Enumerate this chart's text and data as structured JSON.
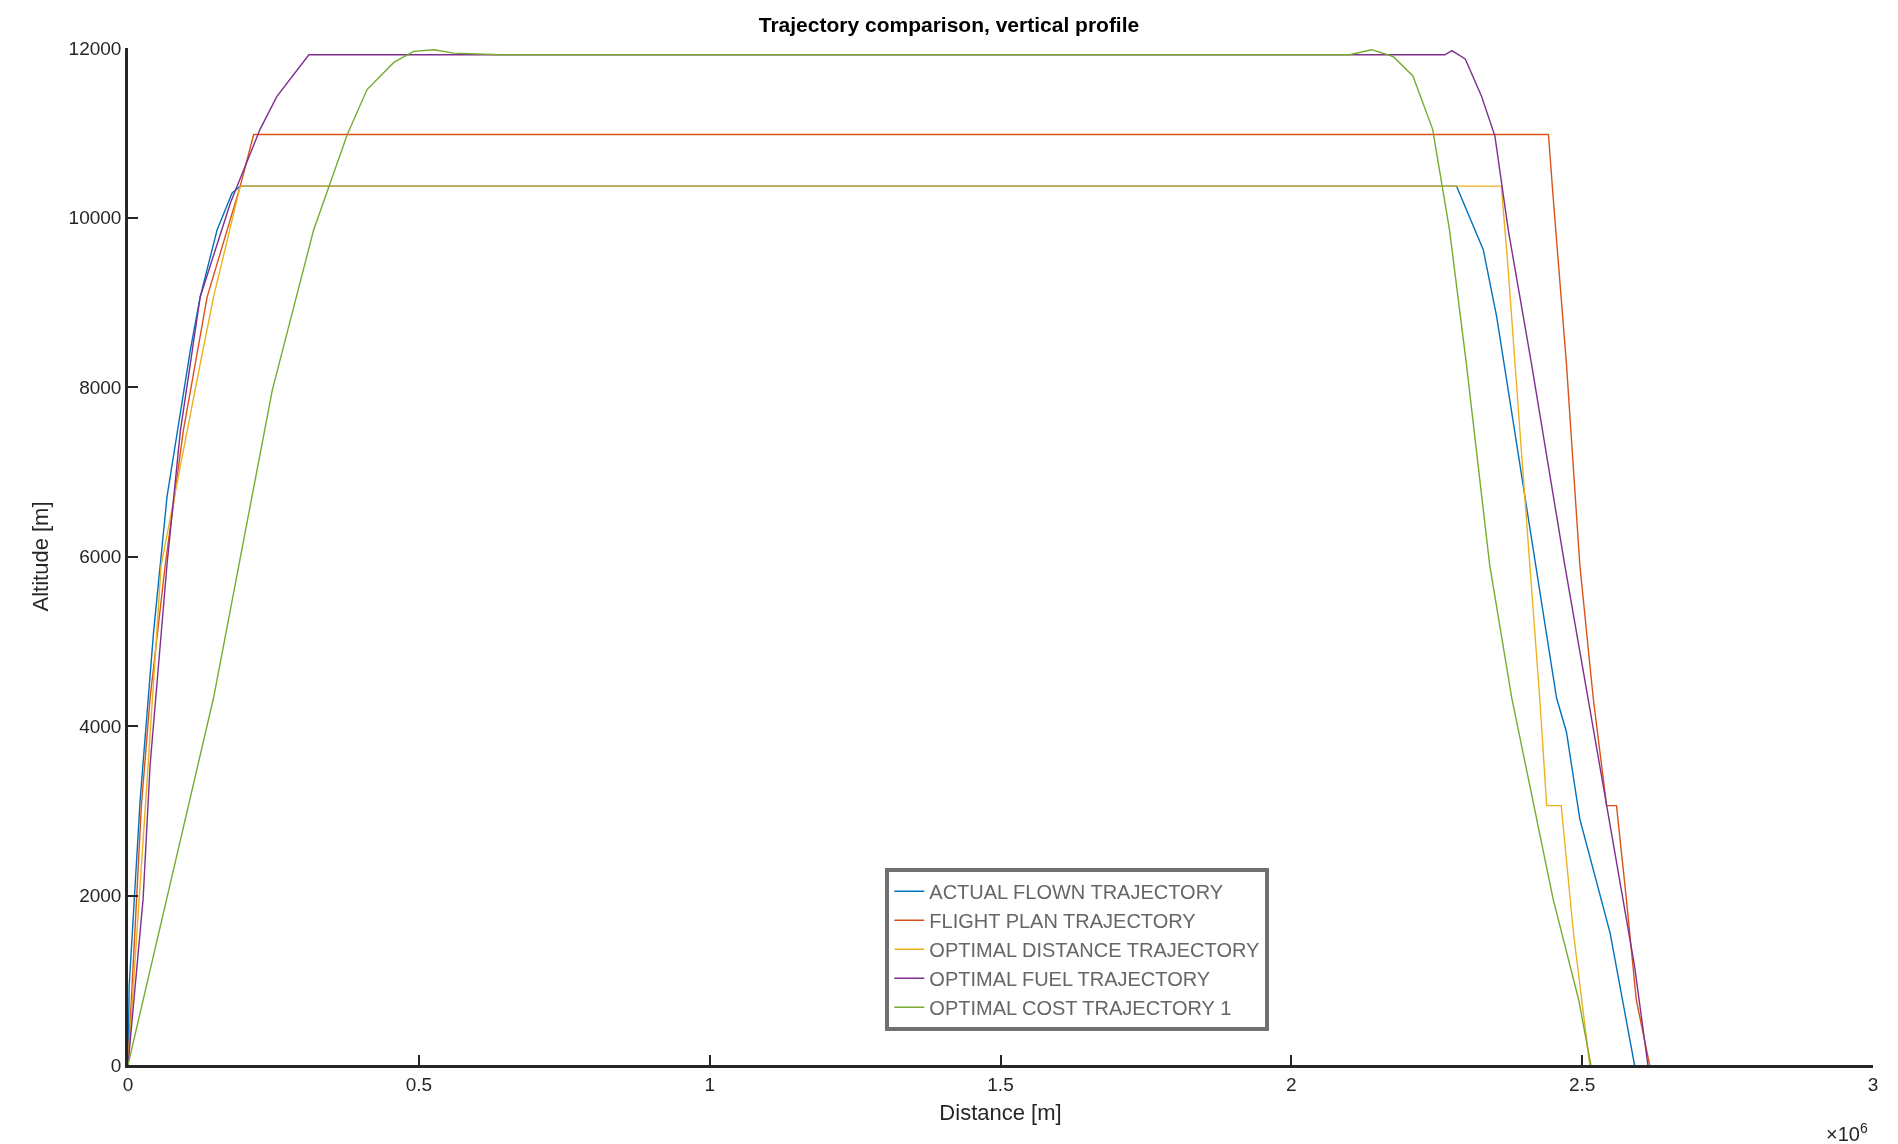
{
  "chart_data": {
    "type": "line",
    "title": "Trajectory comparison, vertical profile",
    "xlabel": "Distance [m]",
    "ylabel": "Altitude [m]",
    "annotations": [
      "×10$^{6}$"
    ],
    "xlim": [
      0,
      3
    ],
    "xticks": [
      0,
      0.5,
      1,
      1.5,
      2,
      2.5,
      3
    ],
    "ylim": [
      0,
      12000
    ],
    "yticks": [
      0,
      2000,
      4000,
      6000,
      8000,
      10000,
      12000
    ],
    "grid": false,
    "legend": "bottom",
    "marker": "none",
    "line_style": "solid",
    "series": [
      {
        "name": "ACTUAL FLOWN TRAJECTORY",
        "color": "#0072bd",
        "x": [
          0,
          0.002,
          0.021,
          0.044,
          0.067,
          0.107,
          0.124,
          0.153,
          0.179,
          0.193,
          2.284,
          2.33,
          2.353,
          2.391,
          2.456,
          2.473,
          2.496,
          2.548,
          2.59
        ],
        "values": [
          0,
          930,
          3140,
          5110,
          6700,
          8430,
          9060,
          9850,
          10290,
          10370,
          10370,
          9620,
          8830,
          7170,
          4330,
          3930,
          2900,
          1560,
          0
        ]
      },
      {
        "name": "FLIGHT PLAN TRAJECTORY",
        "color": "#d95319",
        "x": [
          0,
          0.023,
          0.038,
          0.064,
          0.095,
          0.136,
          0.193,
          0.216,
          2.442,
          2.45,
          2.473,
          2.496,
          2.519,
          2.542,
          2.559,
          2.576,
          2.593,
          2.616
        ],
        "values": [
          0,
          3060,
          4330,
          5900,
          7480,
          9060,
          10370,
          10980,
          10980,
          10250,
          8270,
          5900,
          4330,
          3060,
          3060,
          1960,
          770,
          0
        ]
      },
      {
        "name": "OPTIMAL DISTANCE TRAJECTORY",
        "color": "#edb120",
        "x": [
          0,
          0.03,
          0.057,
          0.124,
          0.147,
          0.193,
          2.361,
          2.372,
          2.393,
          2.41,
          2.427,
          2.439,
          2.464,
          2.485,
          2.513
        ],
        "values": [
          0,
          3060,
          5900,
          8270,
          9060,
          10370,
          10370,
          9460,
          7480,
          5900,
          4330,
          3060,
          3060,
          1560,
          0
        ]
      },
      {
        "name": "OPTIMAL FUEL TRAJECTORY",
        "color": "#7e2f8e",
        "x": [
          0,
          0.026,
          0.038,
          0.067,
          0.09,
          0.124,
          0.176,
          0.227,
          0.256,
          0.311,
          2.264,
          2.276,
          2.299,
          2.327,
          2.35,
          2.373,
          2.413,
          2.47,
          2.51,
          2.55,
          2.59,
          2.613
        ],
        "values": [
          0,
          1960,
          3540,
          5900,
          7480,
          9060,
          10170,
          11040,
          11430,
          11920,
          11920,
          11970,
          11870,
          11430,
          10960,
          9850,
          8270,
          5900,
          4330,
          2750,
          1170,
          0
        ]
      },
      {
        "name": "OPTIMAL COST TRAJECTORY 1",
        "color": "#77ac30",
        "x": [
          0,
          0.147,
          0.248,
          0.319,
          0.377,
          0.411,
          0.457,
          0.491,
          0.526,
          0.56,
          0.64,
          2.1,
          2.138,
          2.175,
          2.209,
          2.243,
          2.272,
          2.301,
          2.341,
          2.379,
          2.45,
          2.494,
          2.515
        ],
        "values": [
          0,
          4330,
          7960,
          9850,
          10980,
          11510,
          11830,
          11960,
          11980,
          11940,
          11920,
          11920,
          11980,
          11900,
          11670,
          11040,
          9850,
          8270,
          5900,
          4330,
          1960,
          770,
          0
        ]
      }
    ]
  }
}
